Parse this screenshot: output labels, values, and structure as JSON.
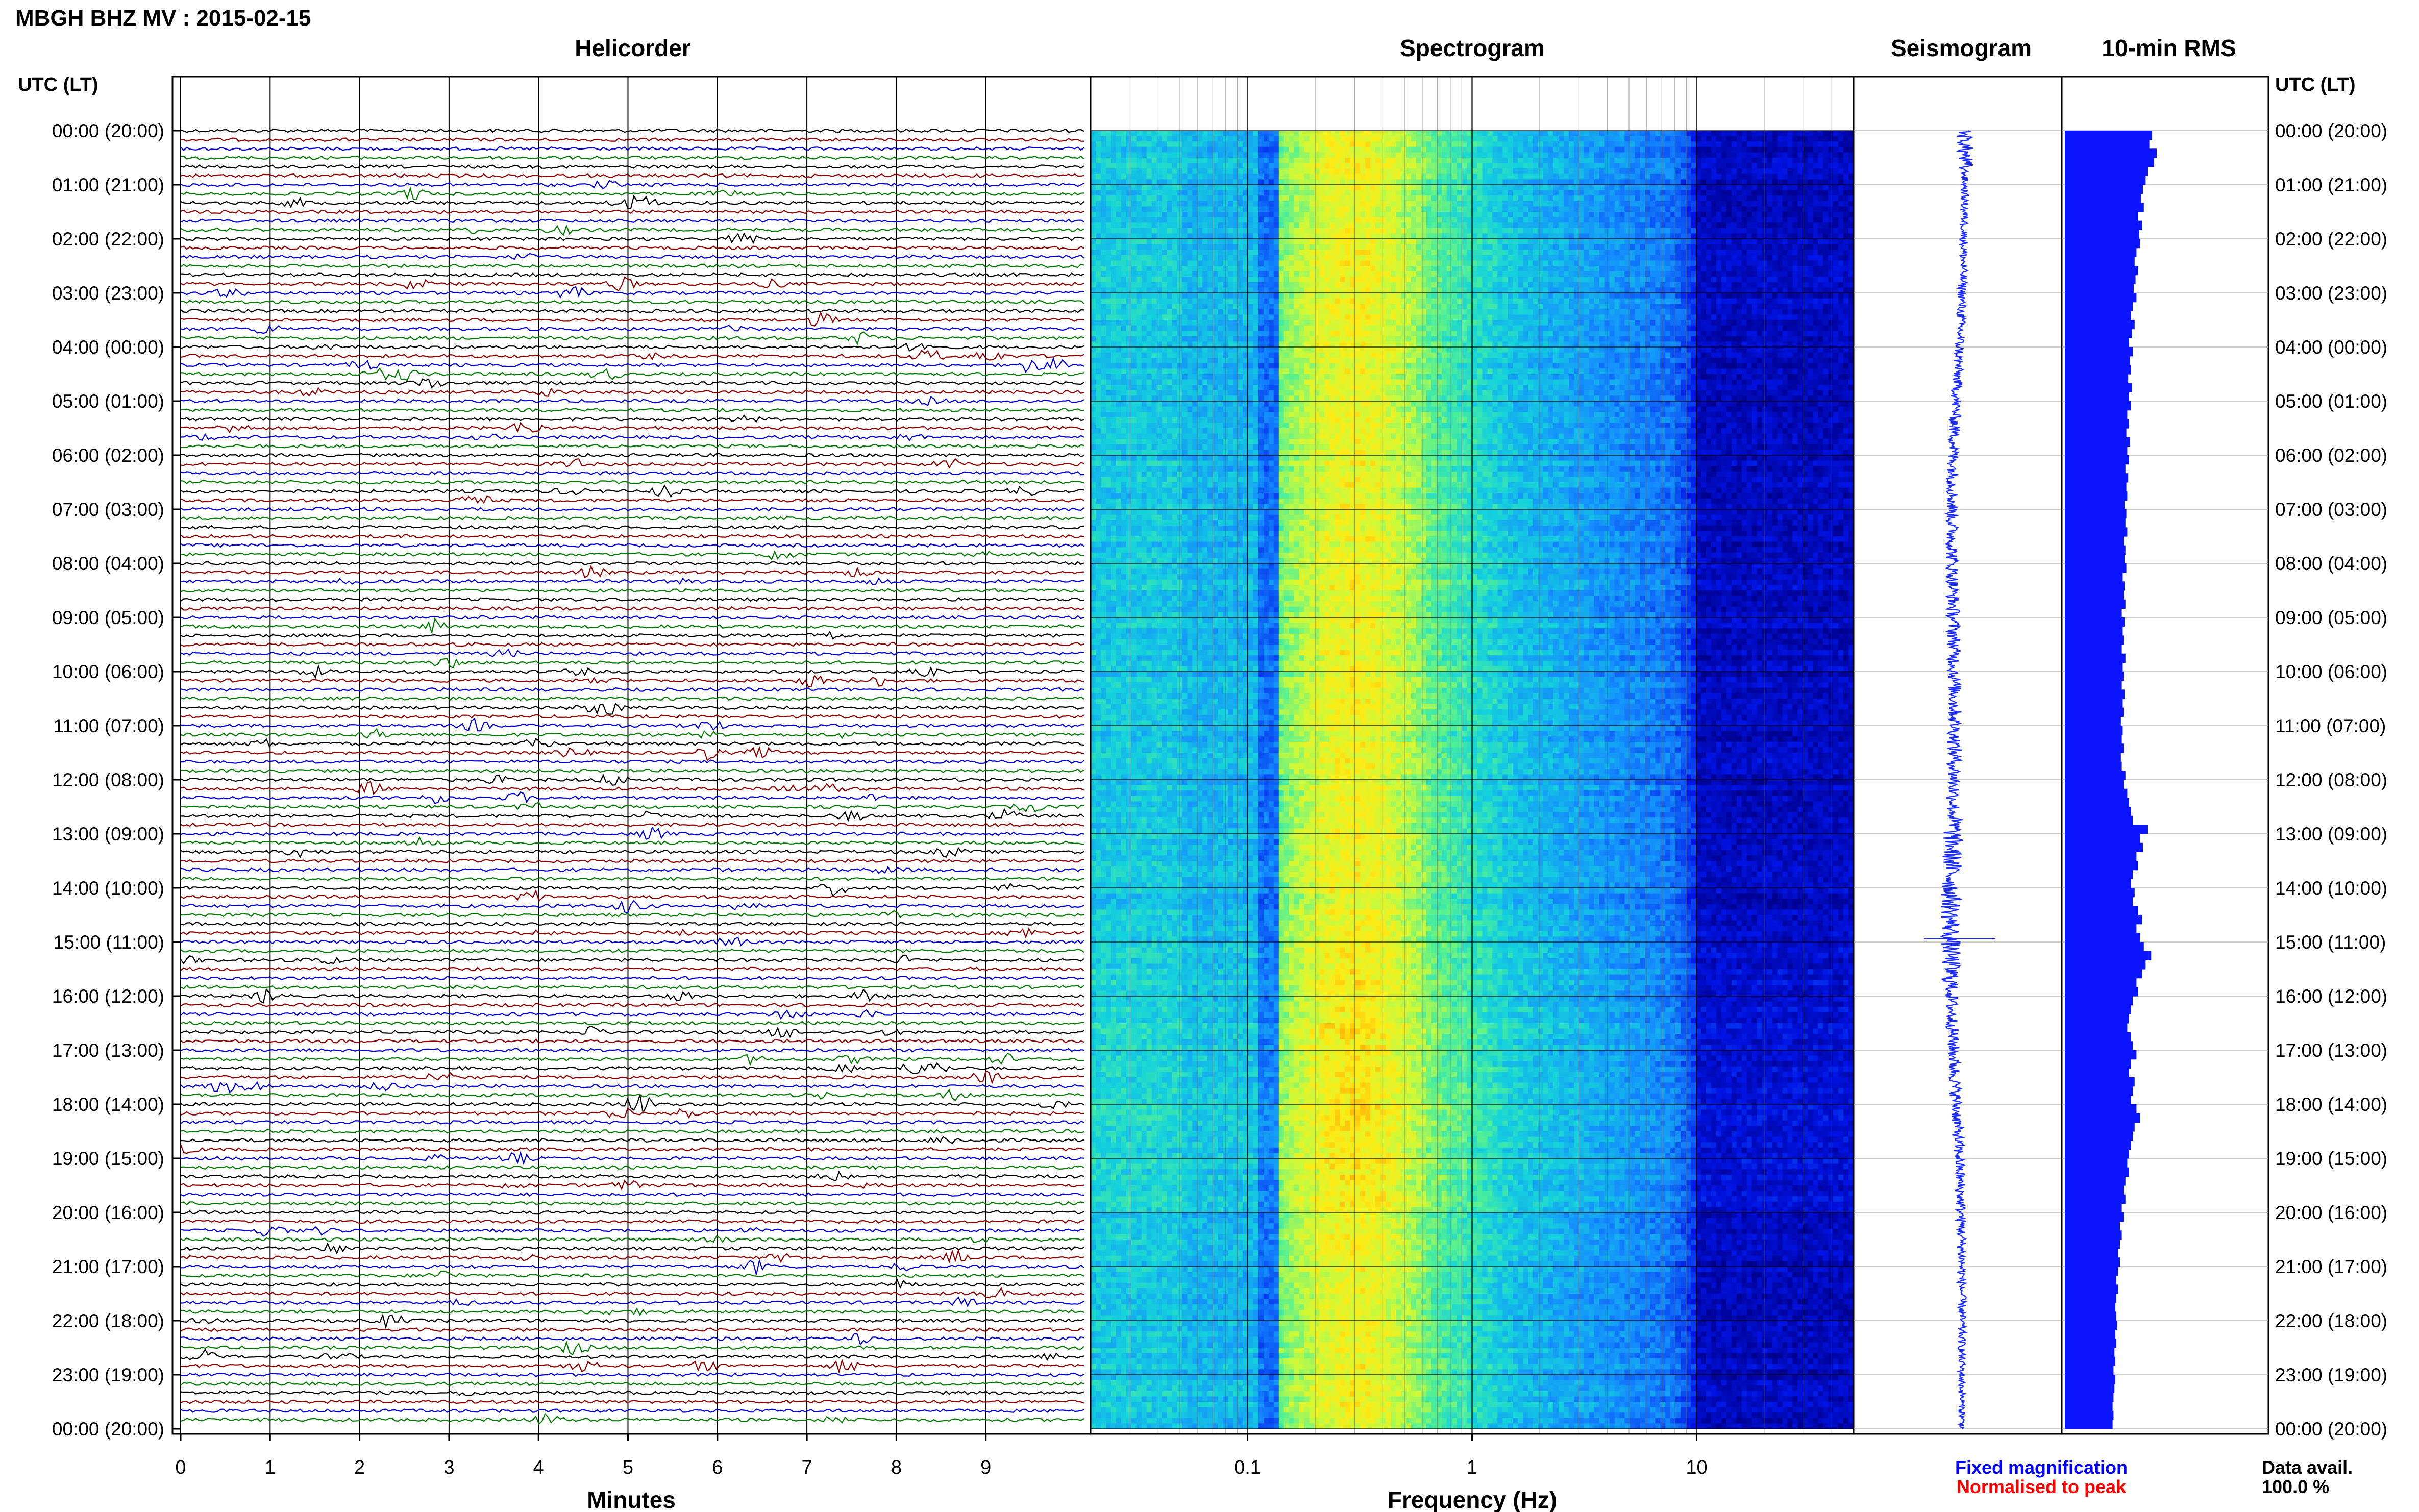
{
  "header": {
    "station_title": "MBGH BHZ MV : 2015-02-15",
    "time_axis_label": "UTC (LT)"
  },
  "panels": {
    "helicorder_title": "Helicorder",
    "spectrogram_title": "Spectrogram",
    "seismogram_title": "Seismogram",
    "rms_title": "10-min RMS"
  },
  "footer": {
    "helicorder_xlabel": "Minutes",
    "spectrogram_xlabel": "Frequency (Hz)",
    "legend_fixed": "Fixed magnification",
    "legend_normalised": "Normalised to peak",
    "data_avail_label": "Data avail.",
    "data_avail_value": "100.0 %"
  },
  "colors": {
    "trace_colors": [
      "#000000",
      "#8b0000",
      "#0000cc",
      "#007a00"
    ],
    "seismogram": "#1a2bff",
    "rms": "#0a14ff",
    "legend_fixed": "#0000ff",
    "legend_normalised": "#ff0000",
    "grid": "#000000"
  },
  "chart_data": {
    "type": "heatmap",
    "time_ticks": [
      "00:00 (20:00)",
      "01:00 (21:00)",
      "02:00 (22:00)",
      "03:00 (23:00)",
      "04:00 (00:00)",
      "05:00 (01:00)",
      "06:00 (02:00)",
      "07:00 (03:00)",
      "08:00 (04:00)",
      "09:00 (05:00)",
      "10:00 (06:00)",
      "11:00 (07:00)",
      "12:00 (08:00)",
      "13:00 (09:00)",
      "14:00 (10:00)",
      "15:00 (11:00)",
      "16:00 (12:00)",
      "17:00 (13:00)",
      "18:00 (14:00)",
      "19:00 (15:00)",
      "20:00 (16:00)",
      "21:00 (17:00)",
      "22:00 (18:00)",
      "23:00 (19:00)",
      "00:00 (20:00)"
    ],
    "helicorder": {
      "x_label": "Minutes",
      "x_ticks": [
        "0",
        "1",
        "2",
        "3",
        "4",
        "5",
        "6",
        "7",
        "8",
        "9"
      ],
      "xlim": [
        0,
        10
      ],
      "traces_per_hour": 6,
      "trace_count": 144
    },
    "spectrogram": {
      "x_label": "Frequency (Hz)",
      "x_scale": "log",
      "x_ticks": [
        "0.1",
        "1",
        "10"
      ],
      "xlim": [
        0.02,
        50
      ]
    },
    "rms_10min_relative": [
      0.95,
      0.92,
      1.0,
      0.97,
      0.9,
      0.88,
      0.85,
      0.83,
      0.86,
      0.8,
      0.84,
      0.81,
      0.82,
      0.78,
      0.76,
      0.8,
      0.77,
      0.75,
      0.78,
      0.74,
      0.72,
      0.76,
      0.73,
      0.7,
      0.74,
      0.71,
      0.72,
      0.69,
      0.73,
      0.7,
      0.72,
      0.68,
      0.7,
      0.67,
      0.71,
      0.68,
      0.7,
      0.66,
      0.69,
      0.67,
      0.68,
      0.65,
      0.67,
      0.66,
      0.68,
      0.64,
      0.66,
      0.65,
      0.67,
      0.63,
      0.65,
      0.64,
      0.66,
      0.62,
      0.65,
      0.63,
      0.64,
      0.62,
      0.66,
      0.63,
      0.64,
      0.62,
      0.65,
      0.63,
      0.64,
      0.61,
      0.63,
      0.62,
      0.64,
      0.61,
      0.62,
      0.66,
      0.64,
      0.68,
      0.7,
      0.72,
      0.74,
      0.9,
      0.82,
      0.85,
      0.78,
      0.8,
      0.74,
      0.72,
      0.76,
      0.74,
      0.8,
      0.84,
      0.78,
      0.82,
      0.86,
      0.94,
      0.88,
      0.84,
      0.78,
      0.8,
      0.74,
      0.72,
      0.7,
      0.68,
      0.72,
      0.74,
      0.78,
      0.72,
      0.7,
      0.76,
      0.74,
      0.72,
      0.78,
      0.82,
      0.76,
      0.74,
      0.72,
      0.7,
      0.68,
      0.7,
      0.66,
      0.64,
      0.66,
      0.62,
      0.64,
      0.6,
      0.62,
      0.6,
      0.58,
      0.6,
      0.58,
      0.56,
      0.58,
      0.56,
      0.55,
      0.56,
      0.57,
      0.55,
      0.56,
      0.54,
      0.55,
      0.53,
      0.55,
      0.54,
      0.53,
      0.52,
      0.53,
      0.52
    ]
  }
}
